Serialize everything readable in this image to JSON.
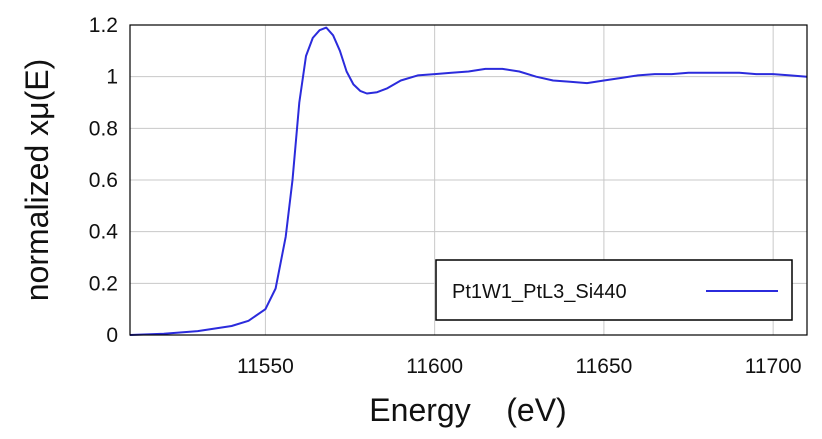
{
  "chart_data": {
    "type": "line",
    "title": "",
    "xlabel": "Energy    (eV)",
    "ylabel": "normalized xμ(E)",
    "xlim": [
      11510,
      11710
    ],
    "ylim": [
      0,
      1.2
    ],
    "xticks": [
      11550,
      11600,
      11650,
      11700
    ],
    "yticks": [
      0,
      0.2,
      0.4,
      0.6,
      0.8,
      1,
      1.2
    ],
    "xtick_labels": [
      "11550",
      "11600",
      "11650",
      "11700"
    ],
    "ytick_labels": [
      "0",
      "0.2",
      "0.4",
      "0.6",
      "0.8",
      "1",
      "1.2"
    ],
    "grid": true,
    "legend": {
      "position": "bottom-right",
      "entries": [
        "Pt1W1_PtL3_Si440"
      ]
    },
    "series": [
      {
        "name": "Pt1W1_PtL3_Si440",
        "color": "#2b2bdc",
        "x": [
          11510,
          11520,
          11530,
          11540,
          11545,
          11550,
          11553,
          11556,
          11558,
          11560,
          11562,
          11564,
          11566,
          11568,
          11570,
          11572,
          11574,
          11576,
          11578,
          11580,
          11583,
          11586,
          11590,
          11595,
          11600,
          11605,
          11610,
          11615,
          11620,
          11625,
          11630,
          11635,
          11640,
          11645,
          11650,
          11655,
          11660,
          11665,
          11670,
          11675,
          11680,
          11685,
          11690,
          11695,
          11700,
          11705,
          11710
        ],
        "y": [
          0.0,
          0.005,
          0.015,
          0.035,
          0.055,
          0.1,
          0.18,
          0.38,
          0.6,
          0.9,
          1.08,
          1.15,
          1.18,
          1.19,
          1.16,
          1.1,
          1.02,
          0.97,
          0.945,
          0.935,
          0.94,
          0.955,
          0.985,
          1.005,
          1.01,
          1.015,
          1.02,
          1.03,
          1.03,
          1.02,
          1.0,
          0.985,
          0.98,
          0.975,
          0.985,
          0.995,
          1.005,
          1.01,
          1.01,
          1.015,
          1.015,
          1.015,
          1.015,
          1.01,
          1.01,
          1.005,
          1.0
        ]
      }
    ]
  }
}
